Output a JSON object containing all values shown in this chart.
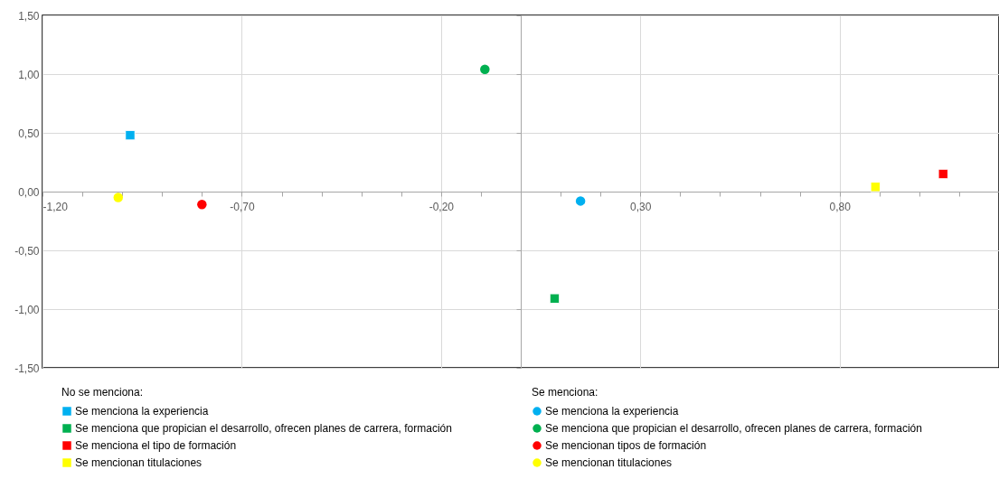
{
  "chart_data": {
    "type": "scatter",
    "annotations": [
      "No se menciona:",
      "Se menciona:"
    ],
    "xlim": [
      -1.2,
      1.2
    ],
    "xticks": [
      {
        "value": -1.2,
        "label": "-1,20"
      },
      {
        "value": -1.1,
        "label": null
      },
      {
        "value": -1.0,
        "label": null
      },
      {
        "value": -0.9,
        "label": null
      },
      {
        "value": -0.8,
        "label": null
      },
      {
        "value": -0.7,
        "label": "-0,70"
      },
      {
        "value": -0.6,
        "label": null
      },
      {
        "value": -0.5,
        "label": null
      },
      {
        "value": -0.4,
        "label": null
      },
      {
        "value": -0.3,
        "label": null
      },
      {
        "value": -0.2,
        "label": "-0,20"
      },
      {
        "value": -0.1,
        "label": null
      },
      {
        "value": 0.1,
        "label": null
      },
      {
        "value": 0.2,
        "label": null
      },
      {
        "value": 0.3,
        "label": "0,30"
      },
      {
        "value": 0.4,
        "label": null
      },
      {
        "value": 0.5,
        "label": null
      },
      {
        "value": 0.6,
        "label": null
      },
      {
        "value": 0.7,
        "label": null
      },
      {
        "value": 0.8,
        "label": "0,80"
      },
      {
        "value": 0.9,
        "label": null
      },
      {
        "value": 1.0,
        "label": null
      },
      {
        "value": 1.1,
        "label": null
      }
    ],
    "ylim": [
      -1.5,
      1.5
    ],
    "yticks": [
      {
        "value": -1.5,
        "label": "-1,50"
      },
      {
        "value": -1.0,
        "label": "-1,00"
      },
      {
        "value": -0.5,
        "label": "-0,50"
      },
      {
        "value": 0,
        "label": "0,00"
      },
      {
        "value": 0.5,
        "label": "0,50"
      },
      {
        "value": 1.0,
        "label": "1,00"
      },
      {
        "value": 1.5,
        "label": "1,50"
      }
    ],
    "grid": true,
    "legend": "bottom",
    "series": [
      {
        "name": "Se menciona la experiencia",
        "color": "#00b0f0",
        "marker": "square",
        "x": [
          -0.98
        ],
        "values": [
          0.48
        ]
      },
      {
        "name": "Se menciona que propician el desarrollo, ofrecen planes de carrera, formación",
        "color": "#00b050",
        "marker": "square",
        "x": [
          0.085
        ],
        "values": [
          -0.91
        ]
      },
      {
        "name": "Se menciona el tipo de formación",
        "color": "#ff0000",
        "marker": "square",
        "x": [
          1.06
        ],
        "values": [
          0.15
        ]
      },
      {
        "name": "Se mencionan titulaciones",
        "color": "#ffff00",
        "marker": "square",
        "x": [
          0.89
        ],
        "values": [
          0.04
        ]
      },
      {
        "name": "Se menciona la experiencia",
        "color": "#00b0f0",
        "marker": "circle",
        "x": [
          0.15
        ],
        "values": [
          -0.08
        ]
      },
      {
        "name": "Se menciona que propician el desarrollo, ofrecen planes de carrera, formación",
        "color": "#00b050",
        "marker": "circle",
        "x": [
          -0.09
        ],
        "values": [
          1.04
        ]
      },
      {
        "name": "Se mencionan tipos de formación",
        "color": "#ff0000",
        "marker": "circle",
        "x": [
          -0.8
        ],
        "values": [
          -0.11
        ]
      },
      {
        "name": "Se mencionan titulaciones",
        "color": "#ffff00",
        "marker": "circle",
        "x": [
          -1.01
        ],
        "values": [
          -0.05
        ]
      }
    ]
  }
}
